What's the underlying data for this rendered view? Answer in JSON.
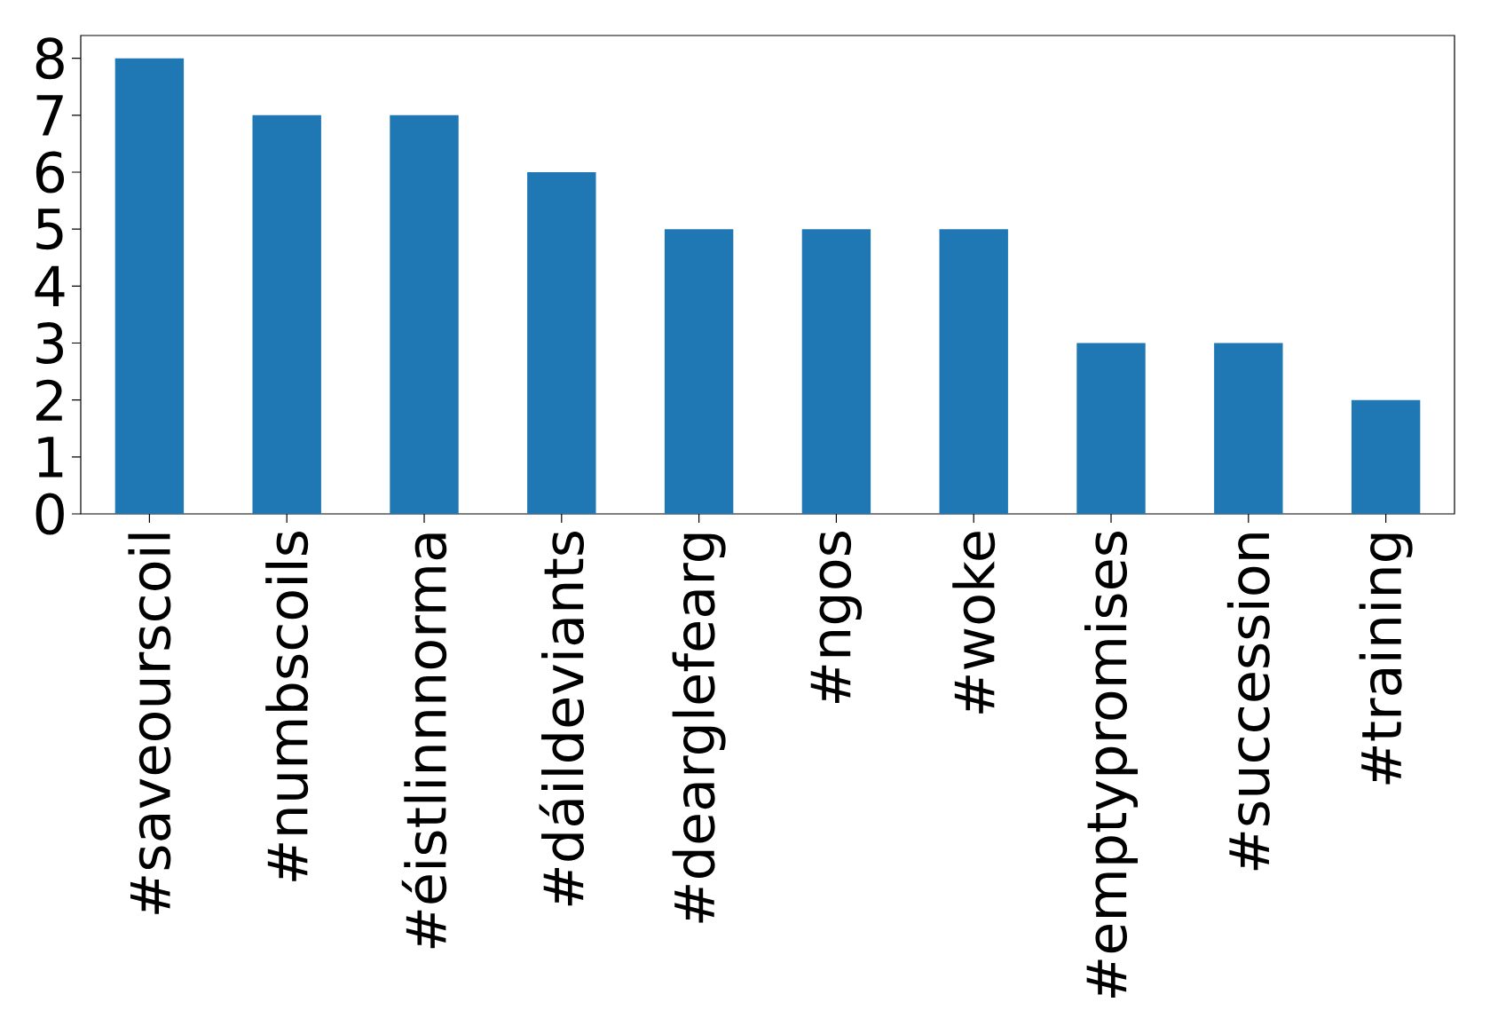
{
  "chart_data": {
    "type": "bar",
    "categories": [
      "#saveourscoil",
      "#numbscoils",
      "#éistlinnnorma",
      "#dáildeviants",
      "#dearglefearg",
      "#ngos",
      "#woke",
      "#emptypromises",
      "#succession",
      "#training"
    ],
    "values": [
      8,
      7,
      7,
      6,
      5,
      5,
      5,
      3,
      3,
      2
    ],
    "color": "#1f77b4",
    "ylim": [
      0,
      8.4
    ],
    "yticks": [
      0,
      1,
      2,
      3,
      4,
      5,
      6,
      7,
      8
    ]
  }
}
